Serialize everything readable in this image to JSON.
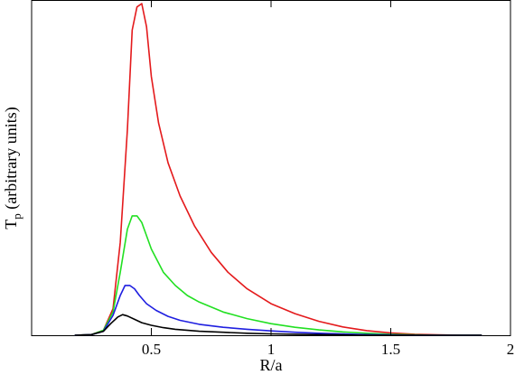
{
  "chart_data": {
    "type": "line",
    "title": "",
    "xlabel": "R/a",
    "ylabel_main": "T",
    "ylabel_sub": "p",
    "ylabel_rest": " (arbitrary units)",
    "xlim": [
      0.0,
      2.0
    ],
    "ylim": [
      0,
      1.0
    ],
    "x_ticks": [
      0.5,
      1.0,
      1.5,
      2.0
    ],
    "x_tick_labels": [
      "0.5",
      "1",
      "1.5",
      "2"
    ],
    "y_ticks_labeled": false,
    "grid": false,
    "series": [
      {
        "color": "#e41a1c",
        "x": [
          0.18,
          0.25,
          0.3,
          0.34,
          0.37,
          0.4,
          0.42,
          0.44,
          0.46,
          0.48,
          0.5,
          0.53,
          0.57,
          0.62,
          0.68,
          0.75,
          0.82,
          0.9,
          1.0,
          1.1,
          1.2,
          1.3,
          1.4,
          1.5,
          1.6,
          1.7,
          1.8,
          1.88
        ],
        "y": [
          0.0,
          0.002,
          0.015,
          0.08,
          0.28,
          0.62,
          0.92,
          0.99,
          1.0,
          0.93,
          0.78,
          0.64,
          0.52,
          0.42,
          0.33,
          0.25,
          0.19,
          0.14,
          0.095,
          0.065,
          0.042,
          0.025,
          0.014,
          0.007,
          0.003,
          0.001,
          0.0,
          0.0
        ]
      },
      {
        "color": "#22e022",
        "x": [
          0.18,
          0.25,
          0.3,
          0.34,
          0.37,
          0.4,
          0.42,
          0.44,
          0.46,
          0.48,
          0.5,
          0.55,
          0.6,
          0.65,
          0.7,
          0.8,
          0.9,
          1.0,
          1.1,
          1.2,
          1.3,
          1.4,
          1.5,
          1.6,
          1.7,
          1.8,
          1.88
        ],
        "y": [
          0.0,
          0.002,
          0.015,
          0.07,
          0.19,
          0.32,
          0.36,
          0.36,
          0.34,
          0.3,
          0.26,
          0.19,
          0.15,
          0.12,
          0.1,
          0.07,
          0.05,
          0.035,
          0.024,
          0.016,
          0.01,
          0.006,
          0.003,
          0.001,
          0.0,
          0.0,
          0.0
        ]
      },
      {
        "color": "#1f1fe0",
        "x": [
          0.18,
          0.25,
          0.3,
          0.34,
          0.37,
          0.39,
          0.41,
          0.43,
          0.45,
          0.48,
          0.52,
          0.57,
          0.62,
          0.7,
          0.8,
          0.9,
          1.0,
          1.1,
          1.2,
          1.3,
          1.4,
          1.5,
          1.6,
          1.7,
          1.8,
          1.88
        ],
        "y": [
          0.0,
          0.002,
          0.012,
          0.06,
          0.12,
          0.15,
          0.15,
          0.14,
          0.12,
          0.095,
          0.075,
          0.057,
          0.045,
          0.033,
          0.024,
          0.018,
          0.013,
          0.009,
          0.006,
          0.004,
          0.002,
          0.001,
          0.0,
          0.0,
          0.0,
          0.0
        ]
      },
      {
        "color": "#000000",
        "x": [
          0.18,
          0.25,
          0.3,
          0.33,
          0.36,
          0.38,
          0.4,
          0.43,
          0.46,
          0.5,
          0.55,
          0.6,
          0.7,
          0.8,
          0.9,
          1.0,
          1.1,
          1.2,
          1.3,
          1.4,
          1.5,
          1.6,
          1.7,
          1.8,
          1.88
        ],
        "y": [
          0.0,
          0.002,
          0.012,
          0.035,
          0.055,
          0.062,
          0.058,
          0.048,
          0.038,
          0.03,
          0.023,
          0.018,
          0.012,
          0.009,
          0.006,
          0.004,
          0.003,
          0.002,
          0.001,
          0.0,
          0.0,
          0.0,
          0.0,
          0.0,
          0.0
        ]
      }
    ]
  }
}
